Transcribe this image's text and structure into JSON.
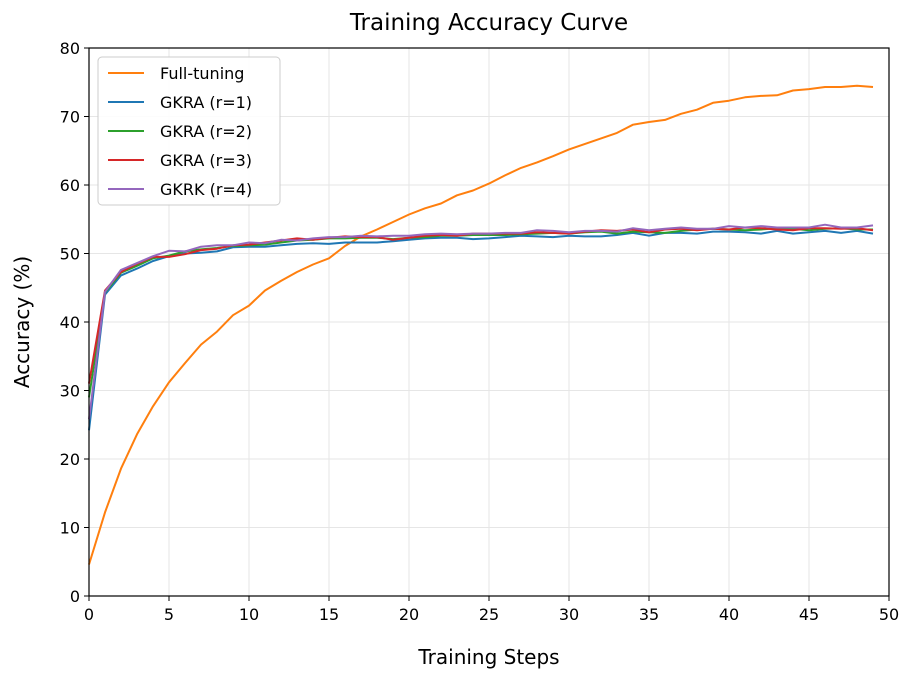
{
  "chart_data": {
    "type": "line",
    "title": "Training Accuracy Curve",
    "xlabel": "Training Steps",
    "ylabel": "Accuracy (%)",
    "xlim": [
      0,
      50
    ],
    "ylim": [
      0,
      80
    ],
    "xticks": [
      0,
      5,
      10,
      15,
      20,
      25,
      30,
      35,
      40,
      45,
      50
    ],
    "yticks": [
      0,
      10,
      20,
      30,
      40,
      50,
      60,
      70,
      80
    ],
    "grid": true,
    "legend_position": "upper-left",
    "x": [
      0,
      1,
      2,
      3,
      4,
      5,
      6,
      7,
      8,
      9,
      10,
      11,
      12,
      13,
      14,
      15,
      16,
      17,
      18,
      19,
      20,
      21,
      22,
      23,
      24,
      25,
      26,
      27,
      28,
      29,
      30,
      31,
      32,
      33,
      34,
      35,
      36,
      37,
      38,
      39,
      40,
      41,
      42,
      43,
      44,
      45,
      46,
      47,
      48,
      49
    ],
    "series": [
      {
        "name": "Full-tuning",
        "color": "#ff7f0e",
        "values": [
          4.6,
          12.2,
          18.6,
          23.6,
          27.7,
          31.2,
          34.0,
          36.7,
          38.6,
          41.0,
          42.4,
          44.6,
          46.0,
          47.3,
          48.4,
          49.3,
          51.1,
          52.5,
          53.5,
          54.6,
          55.7,
          56.6,
          57.3,
          58.5,
          59.2,
          60.2,
          61.4,
          62.5,
          63.3,
          64.2,
          65.2,
          66.0,
          66.8,
          67.6,
          68.8,
          69.2,
          69.5,
          70.4,
          71.0,
          72.0,
          72.3,
          72.8,
          73.0,
          73.1,
          73.8,
          74.0,
          74.3,
          74.3,
          74.5,
          74.3
        ]
      },
      {
        "name": "GKRA (r=1)",
        "color": "#1f77b4",
        "values": [
          24.2,
          44.0,
          46.8,
          47.8,
          48.9,
          49.6,
          50.0,
          50.1,
          50.3,
          50.9,
          51.0,
          51.0,
          51.2,
          51.4,
          51.5,
          51.4,
          51.6,
          51.6,
          51.6,
          51.8,
          52.0,
          52.2,
          52.3,
          52.3,
          52.1,
          52.2,
          52.4,
          52.6,
          52.5,
          52.4,
          52.6,
          52.5,
          52.5,
          52.7,
          53.0,
          52.6,
          53.0,
          53.0,
          52.9,
          53.2,
          53.2,
          53.1,
          52.9,
          53.3,
          52.9,
          53.1,
          53.3,
          53.0,
          53.3,
          52.9
        ]
      },
      {
        "name": "GKRA (r=2)",
        "color": "#2ca02c",
        "values": [
          29.0,
          44.3,
          47.2,
          48.2,
          49.3,
          49.7,
          50.3,
          50.6,
          50.8,
          51.1,
          51.2,
          51.3,
          51.6,
          51.9,
          52.0,
          52.2,
          52.2,
          52.3,
          52.3,
          52.1,
          52.3,
          52.4,
          52.6,
          52.6,
          52.7,
          52.7,
          52.7,
          52.8,
          52.9,
          53.0,
          52.9,
          53.1,
          53.2,
          52.9,
          53.2,
          53.1,
          53.0,
          53.3,
          53.5,
          53.6,
          53.5,
          53.4,
          53.5,
          53.7,
          53.6,
          53.4,
          53.6,
          53.7,
          53.5,
          53.5
        ]
      },
      {
        "name": "GKRA (r=3)",
        "color": "#d62728",
        "values": [
          31.0,
          44.6,
          47.3,
          48.5,
          49.5,
          49.5,
          49.9,
          50.5,
          50.7,
          51.2,
          51.3,
          51.6,
          51.9,
          52.2,
          52.0,
          52.3,
          52.5,
          52.4,
          52.4,
          52.0,
          52.3,
          52.6,
          52.7,
          52.6,
          52.9,
          52.9,
          52.9,
          52.9,
          53.1,
          53.0,
          52.9,
          53.2,
          53.4,
          53.3,
          53.5,
          53.1,
          53.5,
          53.6,
          53.4,
          53.6,
          53.5,
          53.8,
          53.7,
          53.5,
          53.4,
          53.7,
          53.7,
          53.6,
          53.7,
          53.4
        ]
      },
      {
        "name": "GKRK (r=4)",
        "color": "#9467bd",
        "values": [
          25.8,
          44.4,
          47.6,
          48.6,
          49.6,
          50.4,
          50.3,
          51.0,
          51.2,
          51.2,
          51.6,
          51.5,
          52.0,
          51.9,
          52.2,
          52.4,
          52.4,
          52.6,
          52.5,
          52.6,
          52.6,
          52.8,
          52.9,
          52.8,
          52.9,
          52.9,
          53.0,
          53.0,
          53.4,
          53.3,
          53.1,
          53.3,
          53.3,
          53.2,
          53.7,
          53.4,
          53.6,
          53.8,
          53.6,
          53.6,
          54.0,
          53.8,
          54.0,
          53.8,
          53.8,
          53.8,
          54.2,
          53.8,
          53.8,
          54.1
        ]
      }
    ]
  }
}
